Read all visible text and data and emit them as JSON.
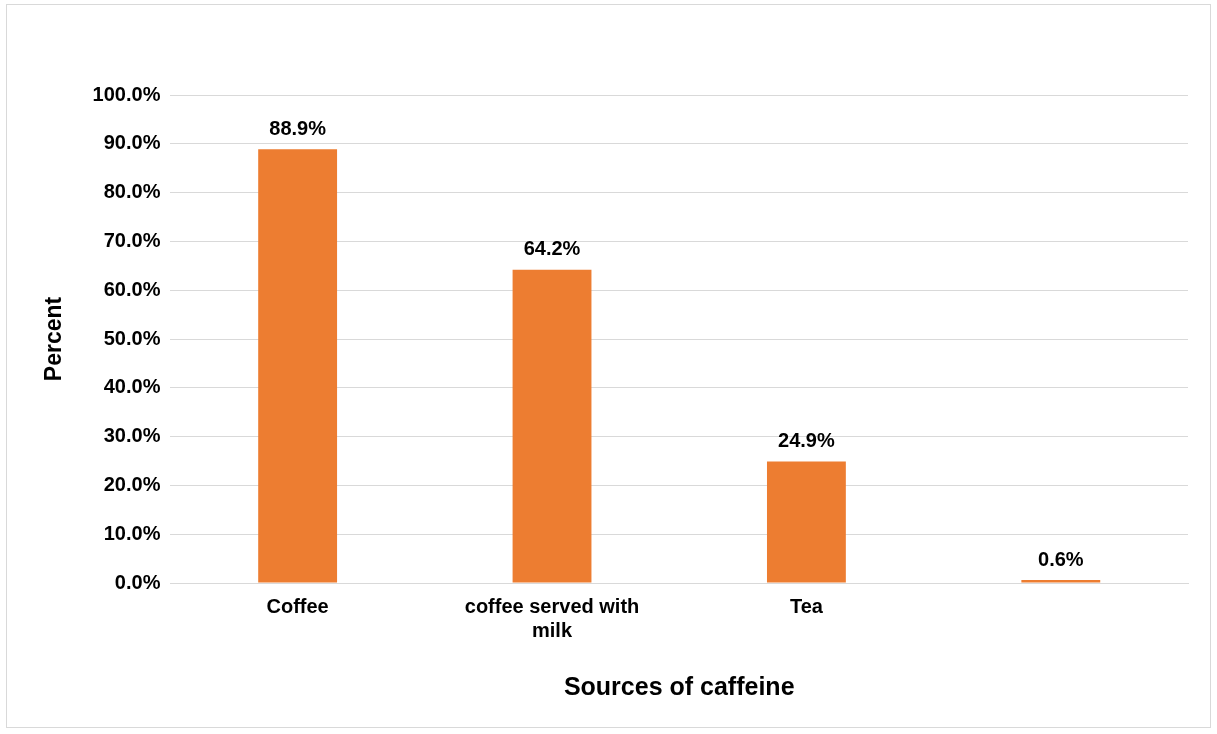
{
  "chart_data": {
    "type": "bar",
    "xlabel": "Sources of caffeine",
    "ylabel": "Percent",
    "categories": [
      "Coffee",
      "coffee served with milk",
      "Tea",
      null
    ],
    "values": [
      88.9,
      64.2,
      24.9,
      0.6
    ],
    "value_labels": [
      "88.9%",
      "64.2%",
      "24.9%",
      "0.6%"
    ],
    "color": "#ed7d31",
    "ylim": [
      0,
      100
    ],
    "yticks": [
      {
        "value": 0,
        "label": "0.0%"
      },
      {
        "value": 10,
        "label": "10.0%"
      },
      {
        "value": 20,
        "label": "20.0%"
      },
      {
        "value": 30,
        "label": "30.0%"
      },
      {
        "value": 40,
        "label": "40.0%"
      },
      {
        "value": 50,
        "label": "50.0%"
      },
      {
        "value": 60,
        "label": "60.0%"
      },
      {
        "value": 70,
        "label": "70.0%"
      },
      {
        "value": 80,
        "label": "80.0%"
      },
      {
        "value": 90,
        "label": "90.0%"
      },
      {
        "value": 100,
        "label": "100.0%"
      }
    ],
    "grid": "y",
    "legend": false
  }
}
